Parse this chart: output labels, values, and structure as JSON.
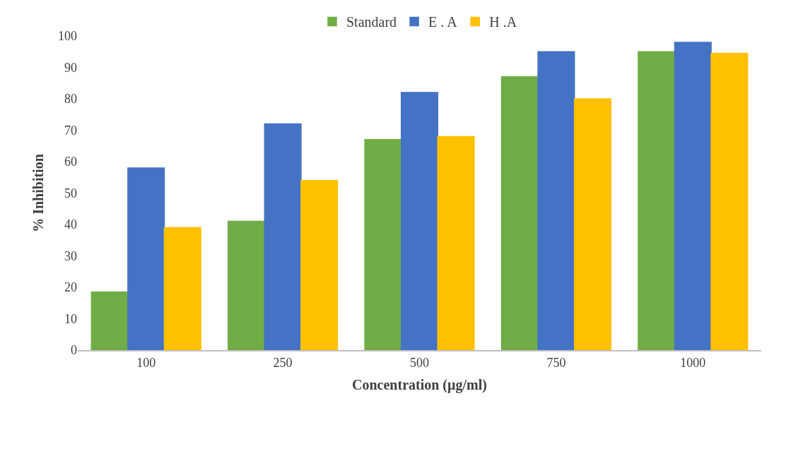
{
  "chart_data": {
    "type": "bar",
    "xlabel": "Concentration (µg/ml)",
    "ylabel": "% Inhibition",
    "categories": [
      "100",
      "250",
      "500",
      "750",
      "1000"
    ],
    "series": [
      {
        "name": "Standard",
        "color": "#70ad47",
        "values": [
          18.5,
          41,
          67,
          87,
          95
        ]
      },
      {
        "name": "E . A",
        "color": "#4472c4",
        "values": [
          58,
          72,
          82,
          95,
          98
        ]
      },
      {
        "name": "H .A",
        "color": "#ffc000",
        "values": [
          39,
          54,
          68,
          80,
          94.5
        ]
      }
    ],
    "ylim": [
      0,
      100
    ],
    "yticks": [
      0,
      10,
      20,
      30,
      40,
      50,
      60,
      70,
      80,
      90,
      100
    ],
    "grid": false,
    "legend": "top"
  }
}
